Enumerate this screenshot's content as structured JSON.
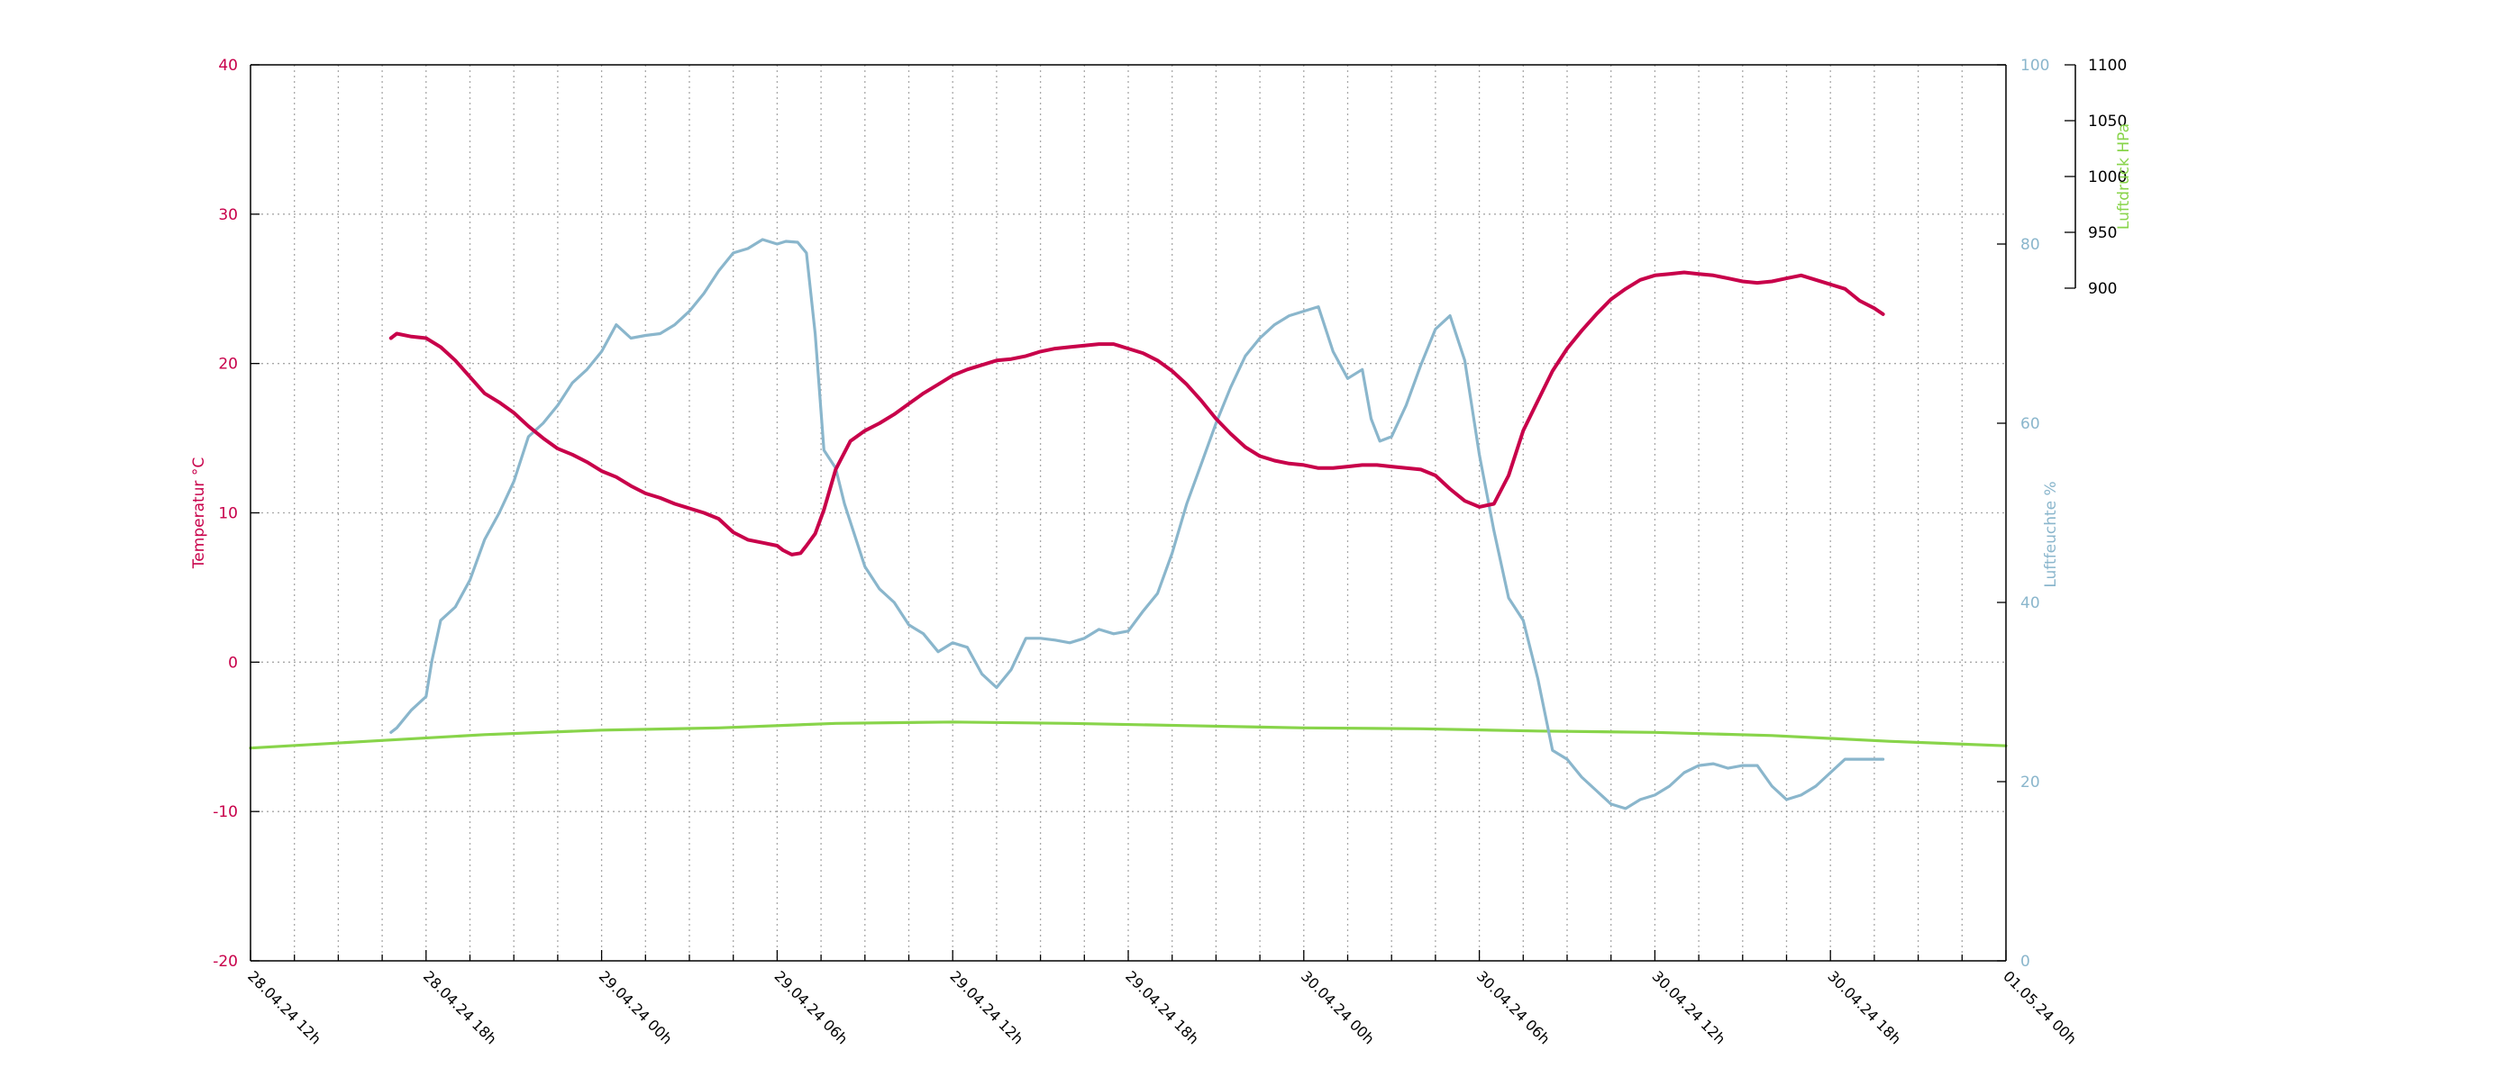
{
  "chart_data": {
    "type": "line",
    "x_ticks": [
      "28.04.24 12h",
      "28.04.24 18h",
      "29.04.24 00h",
      "29.04.24 06h",
      "29.04.24 12h",
      "29.04.24 18h",
      "30.04.24 00h",
      "30.04.24 06h",
      "30.04.24 12h",
      "30.04.24 18h",
      "01.05.24 00h"
    ],
    "x_range": [
      "28.04.24 12h",
      "01.05.24 00h"
    ],
    "x_minor_ticks_per_major": 3,
    "grid": true,
    "axes": {
      "temperature": {
        "label": "Temperatur °C",
        "range": [
          -20,
          40
        ],
        "ticks": [
          "-20",
          "-10",
          "0",
          "10",
          "20",
          "30",
          "40"
        ],
        "color": "#c8004a"
      },
      "humidity": {
        "label": "Luftfeuchte %",
        "range": [
          0,
          100
        ],
        "ticks": [
          "0",
          "20",
          "40",
          "60",
          "80",
          "100"
        ],
        "color": "#8ab6cc"
      },
      "pressure": {
        "label": "Luftdruck HPa",
        "range": [
          900,
          1100
        ],
        "ticks": [
          "900",
          "950",
          "1000",
          "1050",
          "1100"
        ],
        "color": "#88d44a",
        "label_color": "#88d44a",
        "tick_color": "#000000"
      }
    },
    "series": [
      {
        "name": "Temperatur",
        "axis": "temperature",
        "color": "#c8004a",
        "x_hours": [
          4.8,
          5.0,
          5.5,
          6.0,
          6.5,
          7.0,
          7.5,
          8.0,
          8.5,
          9.0,
          9.5,
          10.0,
          10.5,
          11.0,
          11.5,
          12.0,
          12.5,
          13.0,
          13.5,
          14.0,
          14.5,
          15.0,
          15.5,
          16.0,
          16.5,
          17.0,
          17.5,
          18.0,
          18.2,
          18.5,
          18.8,
          19.0,
          19.3,
          19.6,
          20.0,
          20.5,
          21.0,
          21.5,
          22.0,
          22.5,
          23.0,
          23.5,
          24.0,
          24.5,
          25.0,
          25.5,
          26.0,
          26.5,
          27.0,
          27.5,
          28.0,
          28.5,
          29.0,
          29.5,
          30.0,
          30.5,
          31.0,
          31.5,
          32.0,
          32.5,
          33.0,
          33.5,
          34.0,
          34.5,
          35.0,
          35.5,
          36.0,
          36.5,
          37.0,
          37.5,
          38.0,
          38.5,
          39.0,
          39.5,
          40.0,
          40.5,
          41.0,
          41.5,
          42.0,
          42.5,
          43.0,
          43.5,
          44.0,
          44.5,
          45.0,
          45.5,
          46.0,
          46.5,
          47.0,
          47.5,
          48.0,
          48.5,
          49.0,
          49.5,
          50.0,
          50.5,
          51.0,
          51.5,
          52.0,
          52.5,
          53.0,
          53.5,
          54.0,
          54.5,
          55.0,
          55.5,
          55.8
        ],
        "values": [
          21.7,
          22.0,
          21.8,
          21.7,
          21.1,
          20.2,
          19.1,
          18.0,
          17.4,
          16.7,
          15.8,
          15.0,
          14.3,
          13.9,
          13.4,
          12.8,
          12.4,
          11.8,
          11.3,
          11.0,
          10.6,
          10.3,
          10.0,
          9.6,
          8.7,
          8.2,
          8.0,
          7.8,
          7.5,
          7.2,
          7.3,
          7.8,
          8.6,
          10.2,
          12.9,
          14.8,
          15.5,
          16.0,
          16.6,
          17.3,
          18.0,
          18.6,
          19.2,
          19.6,
          19.9,
          20.2,
          20.3,
          20.5,
          20.8,
          21.0,
          21.1,
          21.2,
          21.3,
          21.3,
          21.0,
          20.7,
          20.2,
          19.5,
          18.6,
          17.5,
          16.3,
          15.3,
          14.4,
          13.8,
          13.5,
          13.3,
          13.2,
          13.0,
          13.0,
          13.1,
          13.2,
          13.2,
          13.1,
          13.0,
          12.9,
          12.5,
          11.6,
          10.8,
          10.4,
          10.6,
          12.5,
          15.5,
          17.5,
          19.5,
          21.0,
          22.2,
          23.3,
          24.3,
          25.0,
          25.6,
          25.9,
          26.0,
          26.1,
          26.0,
          25.9,
          25.7,
          25.5,
          25.4,
          25.5,
          25.7,
          25.9,
          25.6,
          25.3,
          25.0,
          24.2,
          23.7,
          23.3
        ]
      },
      {
        "name": "Luftfeuchte",
        "axis": "humidity",
        "color": "#8ab6cc",
        "x_hours": [
          4.8,
          5.0,
          5.5,
          6.0,
          6.2,
          6.5,
          7.0,
          7.5,
          8.0,
          8.5,
          9.0,
          9.5,
          10.0,
          10.5,
          11.0,
          11.5,
          12.0,
          12.5,
          13.0,
          13.5,
          14.0,
          14.5,
          15.0,
          15.5,
          16.0,
          16.5,
          17.0,
          17.5,
          18.0,
          18.3,
          18.7,
          19.0,
          19.3,
          19.6,
          20.0,
          20.3,
          20.6,
          21.0,
          21.5,
          22.0,
          22.5,
          23.0,
          23.5,
          24.0,
          24.5,
          25.0,
          25.5,
          26.0,
          26.5,
          27.0,
          27.5,
          28.0,
          28.5,
          29.0,
          29.5,
          30.0,
          30.5,
          31.0,
          31.5,
          32.0,
          32.5,
          33.0,
          33.5,
          34.0,
          34.5,
          35.0,
          35.5,
          36.0,
          36.5,
          37.0,
          37.5,
          38.0,
          38.3,
          38.6,
          39.0,
          39.5,
          40.0,
          40.5,
          41.0,
          41.5,
          42.0,
          42.5,
          43.0,
          43.5,
          44.0,
          44.5,
          45.0,
          45.5,
          46.0,
          46.5,
          47.0,
          47.5,
          48.0,
          48.5,
          49.0,
          49.5,
          50.0,
          50.5,
          51.0,
          51.5,
          52.0,
          52.5,
          53.0,
          53.5,
          54.0,
          54.5,
          55.0,
          55.5,
          55.8
        ],
        "values": [
          25.5,
          26.0,
          28.0,
          29.5,
          33.5,
          38.0,
          39.5,
          42.5,
          47.0,
          50.0,
          53.5,
          58.5,
          60.0,
          62.0,
          64.5,
          66.0,
          68.0,
          71.0,
          69.5,
          69.8,
          70.0,
          71.0,
          72.5,
          74.5,
          77.0,
          79.0,
          79.5,
          80.5,
          80.0,
          80.3,
          80.2,
          79.0,
          70.0,
          57.0,
          55.0,
          51.0,
          48.0,
          44.0,
          41.5,
          40.0,
          37.5,
          36.5,
          34.5,
          35.5,
          35.0,
          32.0,
          30.5,
          32.5,
          36.0,
          36.0,
          35.8,
          35.5,
          36.0,
          37.0,
          36.5,
          36.8,
          39.0,
          41.0,
          45.5,
          51.0,
          55.5,
          60.0,
          64.0,
          67.5,
          69.5,
          71.0,
          72.0,
          72.5,
          73.0,
          68.0,
          65.0,
          66.0,
          60.5,
          58.0,
          58.5,
          62.0,
          66.5,
          70.5,
          72.0,
          67.0,
          56.5,
          48.0,
          40.5,
          38.0,
          31.5,
          23.5,
          22.5,
          20.5,
          19.0,
          17.5,
          17.0,
          18.0,
          18.5,
          19.5,
          21.0,
          21.8,
          22.0,
          21.5,
          21.8,
          21.8,
          19.5,
          18.0,
          18.5,
          19.5,
          21.0,
          22.5,
          22.5,
          22.5,
          22.5
        ]
      },
      {
        "name": "Luftdruck",
        "axis": "pressure",
        "color": "#88d44a",
        "x_hours": [
          0,
          4,
          8,
          12,
          16,
          20,
          24,
          28,
          32,
          36,
          40,
          44,
          48,
          52,
          56,
          60
        ],
        "values": [
          947.5,
          949.0,
          950.5,
          951.5,
          952.0,
          953.0,
          953.3,
          953.0,
          952.5,
          952.0,
          951.8,
          951.3,
          951.0,
          950.3,
          949.0,
          948.0
        ]
      }
    ]
  }
}
